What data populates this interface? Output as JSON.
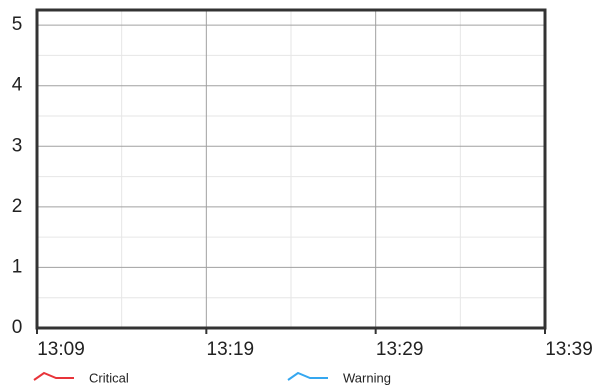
{
  "chart_data": {
    "type": "line",
    "x": [],
    "series": [
      {
        "name": "Critical",
        "color": "#e8343a",
        "values": []
      },
      {
        "name": "Warning",
        "color": "#35a7f0",
        "values": []
      }
    ],
    "xlim": [
      "13:09",
      "13:39"
    ],
    "xticks": [
      "13:09",
      "13:19",
      "13:29",
      "13:39"
    ],
    "ylim": [
      0,
      5.25
    ],
    "yticks": [
      0,
      1,
      2,
      3,
      4,
      5
    ],
    "grid": true
  }
}
